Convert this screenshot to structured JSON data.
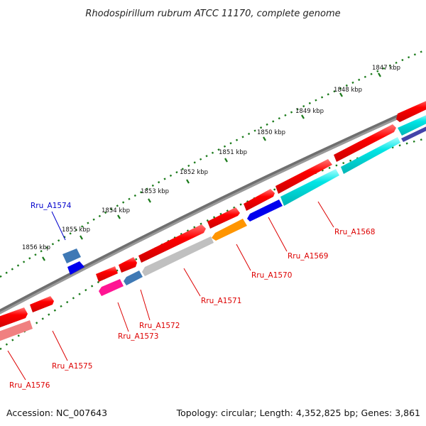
{
  "title": "Rhodospirillum rubrum ATCC 11170, complete genome",
  "footer": {
    "accession": "Accession: NC_007643",
    "summary": "Topology: circular; Length: 4,352,825 bp; Genes: 3,861"
  },
  "ticks": [
    "1847 kbp",
    "1848 kbp",
    "1849 kbp",
    "1850 kbp",
    "1851 kbp",
    "1852 kbp",
    "1853 kbp",
    "1854 kbp",
    "1855 kbp",
    "1856 kbp"
  ],
  "gene_labels": [
    "Rru_A1568",
    "Rru_A1569",
    "Rru_A1570",
    "Rru_A1571",
    "Rru_A1572",
    "Rru_A1573",
    "Rru_A1574",
    "Rru_A1575",
    "Rru_A1576"
  ],
  "colors": {
    "backbone": "#7a7a7a",
    "cds": "#ff0000",
    "cyan": "#00e5e5",
    "orange": "#ff9500",
    "blue": "#0000ee",
    "steelblue": "#3f79b5",
    "gray": "#c0c0c0",
    "magenta": "#ff1493",
    "pink": "#f08080",
    "navy": "#4444aa",
    "tick": "#1a7a1a",
    "label_red": "#dd0000",
    "label_blue": "#0000cc"
  }
}
